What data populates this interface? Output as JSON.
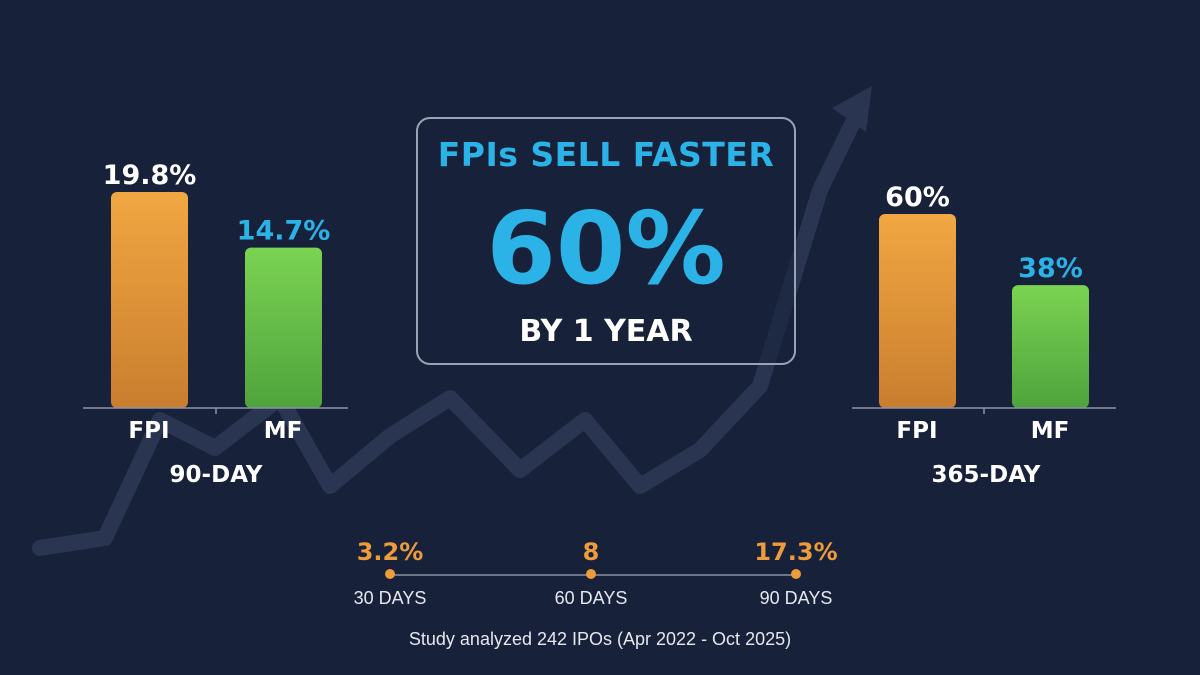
{
  "colors": {
    "background": "#18213a",
    "fpi_bar": "#ee9b3b",
    "mf_bar": "#6cc64a",
    "accent_blue": "#2bb3e8",
    "accent_orange": "#ee9b3b",
    "trend_line": "#2a3552"
  },
  "hero": {
    "title": "FPIs SELL FASTER",
    "value": "60%",
    "subtitle": "BY 1 YEAR"
  },
  "chart_data": [
    {
      "type": "bar",
      "title": "90-DAY",
      "categories": [
        "FPI",
        "MF"
      ],
      "values": [
        19.8,
        14.7
      ],
      "value_labels": [
        "19.8%",
        "14.7%"
      ],
      "value_label_colors": [
        "#ffffff",
        "#2bb3e8"
      ],
      "bar_colors": [
        "#ee9b3b",
        "#6cc64a"
      ],
      "grid": false
    },
    {
      "type": "bar",
      "title": "365-DAY",
      "categories": [
        "FPI",
        "MF"
      ],
      "values": [
        60,
        38
      ],
      "value_labels": [
        "60%",
        "38%"
      ],
      "value_label_colors": [
        "#ffffff",
        "#2bb3e8"
      ],
      "bar_colors": [
        "#ee9b3b",
        "#6cc64a"
      ],
      "grid": false
    }
  ],
  "timeline": {
    "points": [
      {
        "value": "3.2%",
        "label": "30 DAYS"
      },
      {
        "value": "8",
        "label": "60 DAYS"
      },
      {
        "value": "17.3%",
        "label": "90 DAYS"
      }
    ]
  },
  "footnote": "Study analyzed 242 IPOs (Apr 2022 - Oct 2025)"
}
